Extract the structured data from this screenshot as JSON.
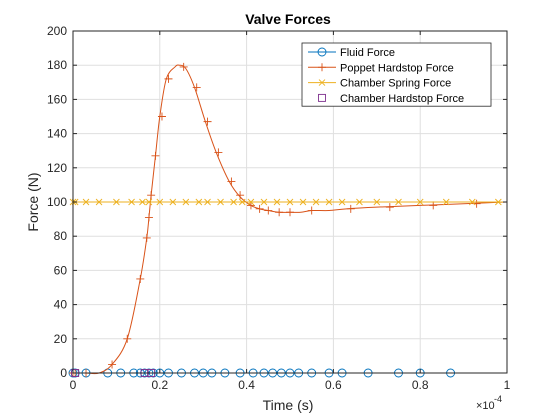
{
  "chart_data": {
    "type": "line",
    "title": "Valve Forces",
    "xlabel": "Time (s)",
    "ylabel": "Force (N)",
    "x_exponent_label": "×10",
    "x_exponent_power": "-4",
    "xlim": [
      0,
      1
    ],
    "ylim": [
      0,
      200
    ],
    "x_ticks": [
      0,
      0.2,
      0.4,
      0.6,
      0.8,
      1
    ],
    "x_tick_labels": [
      "0",
      "0.2",
      "0.4",
      "0.6",
      "0.8",
      "1"
    ],
    "y_ticks": [
      0,
      20,
      40,
      60,
      80,
      100,
      120,
      140,
      160,
      180,
      200
    ],
    "y_tick_labels": [
      "0",
      "20",
      "40",
      "60",
      "80",
      "100",
      "120",
      "140",
      "160",
      "180",
      "200"
    ],
    "grid": true,
    "legend_position": "top-right",
    "series": [
      {
        "name": "Fluid Force",
        "color": "#0072BD",
        "marker": "circle",
        "line": true,
        "points": [
          [
            0,
            0
          ],
          [
            0.005,
            0
          ],
          [
            0.03,
            0
          ],
          [
            0.08,
            0
          ],
          [
            0.11,
            0
          ],
          [
            0.14,
            0
          ],
          [
            0.155,
            0
          ],
          [
            0.165,
            0
          ],
          [
            0.175,
            0
          ],
          [
            0.185,
            0
          ],
          [
            0.2,
            0
          ],
          [
            0.22,
            0
          ],
          [
            0.25,
            0
          ],
          [
            0.28,
            0
          ],
          [
            0.3,
            0
          ],
          [
            0.32,
            0
          ],
          [
            0.35,
            0
          ],
          [
            0.385,
            0
          ],
          [
            0.415,
            0
          ],
          [
            0.44,
            0
          ],
          [
            0.46,
            0
          ],
          [
            0.48,
            0
          ],
          [
            0.5,
            0
          ],
          [
            0.52,
            0
          ],
          [
            0.55,
            0
          ],
          [
            0.59,
            0
          ],
          [
            0.62,
            0
          ],
          [
            0.68,
            0
          ],
          [
            0.75,
            0
          ],
          [
            0.8,
            0
          ],
          [
            0.87,
            0
          ]
        ]
      },
      {
        "name": "Poppet Hardstop Force",
        "color": "#D95319",
        "marker": "plus",
        "line": true,
        "points": [
          [
            0,
            0
          ],
          [
            0.005,
            0
          ],
          [
            0.03,
            0
          ],
          [
            0.06,
            0
          ],
          [
            0.09,
            5
          ],
          [
            0.125,
            20
          ],
          [
            0.155,
            55
          ],
          [
            0.17,
            79
          ],
          [
            0.175,
            91
          ],
          [
            0.18,
            104
          ],
          [
            0.19,
            127
          ],
          [
            0.2,
            150
          ],
          [
            0.215,
            172
          ],
          [
            0.235,
            179
          ],
          [
            0.245,
            180
          ],
          [
            0.26,
            178
          ],
          [
            0.28,
            167
          ],
          [
            0.305,
            147
          ],
          [
            0.33,
            129
          ],
          [
            0.36,
            112
          ],
          [
            0.385,
            103
          ],
          [
            0.41,
            98
          ],
          [
            0.43,
            96
          ],
          [
            0.45,
            95
          ],
          [
            0.475,
            94
          ],
          [
            0.5,
            94
          ],
          [
            0.525,
            94
          ],
          [
            0.55,
            95
          ],
          [
            0.59,
            95
          ],
          [
            0.63,
            96
          ],
          [
            0.7,
            97
          ],
          [
            0.8,
            98
          ],
          [
            0.9,
            99
          ],
          [
            0.95,
            99.5
          ],
          [
            1,
            100
          ]
        ],
        "marker_points": [
          [
            0,
            0
          ],
          [
            0.005,
            0
          ],
          [
            0.03,
            0
          ],
          [
            0.09,
            5
          ],
          [
            0.125,
            20
          ],
          [
            0.155,
            55
          ],
          [
            0.17,
            79
          ],
          [
            0.175,
            91
          ],
          [
            0.18,
            104
          ],
          [
            0.19,
            127
          ],
          [
            0.205,
            150
          ],
          [
            0.22,
            172
          ],
          [
            0.255,
            179
          ],
          [
            0.285,
            167
          ],
          [
            0.31,
            147
          ],
          [
            0.335,
            129
          ],
          [
            0.365,
            112
          ],
          [
            0.385,
            104
          ],
          [
            0.41,
            98
          ],
          [
            0.43,
            96
          ],
          [
            0.45,
            95
          ],
          [
            0.475,
            94
          ],
          [
            0.5,
            94
          ],
          [
            0.55,
            95
          ],
          [
            0.64,
            96
          ],
          [
            0.73,
            97
          ],
          [
            0.83,
            98
          ],
          [
            0.93,
            99
          ]
        ]
      },
      {
        "name": "Chamber Spring Force",
        "color": "#EDB120",
        "marker": "x",
        "line": true,
        "points": [
          [
            0,
            100
          ],
          [
            1,
            100
          ]
        ],
        "marker_points": [
          [
            0,
            100
          ],
          [
            0.005,
            100
          ],
          [
            0.03,
            100
          ],
          [
            0.06,
            100
          ],
          [
            0.1,
            100
          ],
          [
            0.135,
            100
          ],
          [
            0.16,
            100
          ],
          [
            0.175,
            100
          ],
          [
            0.2,
            100
          ],
          [
            0.23,
            100
          ],
          [
            0.26,
            100
          ],
          [
            0.29,
            100
          ],
          [
            0.31,
            100
          ],
          [
            0.34,
            100
          ],
          [
            0.37,
            100
          ],
          [
            0.39,
            100
          ],
          [
            0.41,
            100
          ],
          [
            0.44,
            100
          ],
          [
            0.47,
            100
          ],
          [
            0.5,
            100
          ],
          [
            0.53,
            100
          ],
          [
            0.56,
            100
          ],
          [
            0.59,
            100
          ],
          [
            0.62,
            100
          ],
          [
            0.66,
            100
          ],
          [
            0.7,
            100
          ],
          [
            0.75,
            100
          ],
          [
            0.8,
            100
          ],
          [
            0.86,
            100
          ],
          [
            0.92,
            100
          ],
          [
            0.98,
            100
          ]
        ]
      },
      {
        "name": "Chamber Hardstop Force",
        "color": "#7E2F8E",
        "marker": "square",
        "line": false,
        "points": [
          [
            0.005,
            0
          ],
          [
            0.165,
            0
          ],
          [
            0.18,
            0
          ]
        ]
      }
    ]
  }
}
